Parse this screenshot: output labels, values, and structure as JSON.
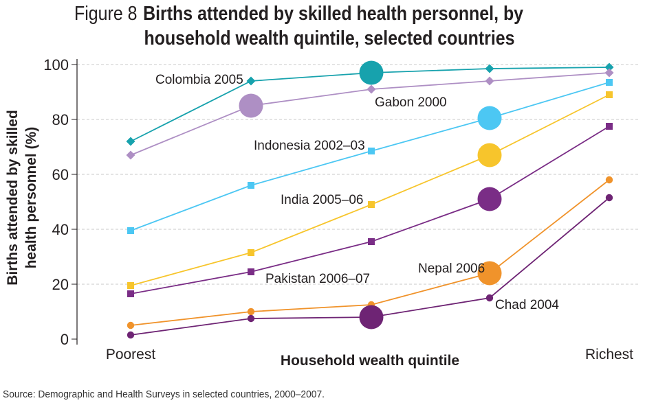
{
  "figure_label": "Figure 8",
  "title_line1": "Births attended by skilled health personnel, by",
  "title_line2": "household wealth quintile, selected countries",
  "source": "Source: Demographic and Health Surveys in selected countries, 2000–2007.",
  "colors": {
    "colombia": "#17a2ad",
    "gabon": "#ae8fc4",
    "indonesia": "#4cc7f3",
    "india": "#f7c52c",
    "pakistan": "#7a2d86",
    "nepal": "#f0932b",
    "chad": "#6e2474",
    "grid": "#c8c8c8",
    "axis": "#231f20"
  },
  "chart_data": {
    "type": "line",
    "xlabel": "Household wealth quintile",
    "ylabel": "Births attended by skilled health personnel (%)",
    "ylim": [
      0,
      100
    ],
    "yticks": [
      0,
      20,
      40,
      60,
      80,
      100
    ],
    "x_tick_labels": [
      "Poorest",
      "",
      "",
      "",
      "Richest"
    ],
    "grid": "horizontal dashed",
    "series": [
      {
        "name": "Colombia 2005",
        "key": "colombia",
        "marker": "diamond",
        "values": [
          72,
          94,
          97,
          98.5,
          99
        ],
        "big_dot_index": 2
      },
      {
        "name": "Gabon 2000",
        "key": "gabon",
        "marker": "diamond",
        "values": [
          67,
          85,
          91,
          94,
          97
        ],
        "big_dot_index": 1
      },
      {
        "name": "Indonesia 2002–03",
        "key": "indonesia",
        "marker": "square",
        "values": [
          39.5,
          56,
          68.5,
          80.5,
          93.5
        ],
        "big_dot_index": 3
      },
      {
        "name": "India 2005–06",
        "key": "india",
        "marker": "square",
        "values": [
          19.5,
          31.5,
          49,
          67,
          89
        ],
        "big_dot_index": 3
      },
      {
        "name": "Pakistan 2006–07",
        "key": "pakistan",
        "marker": "square",
        "values": [
          16.5,
          24.5,
          35.5,
          51,
          77.5
        ],
        "big_dot_index": 3
      },
      {
        "name": "Nepal 2006",
        "key": "nepal",
        "marker": "circle",
        "values": [
          5,
          10,
          12.5,
          24,
          58
        ],
        "big_dot_index": 3
      },
      {
        "name": "Chad 2004",
        "key": "chad",
        "marker": "circle",
        "values": [
          1.5,
          7.5,
          8,
          15,
          51.5
        ],
        "big_dot_index": 2
      }
    ],
    "annotations": [
      "Colombia 2005",
      "Gabon 2000",
      "Indonesia 2002–03",
      "India 2005–06",
      "Pakistan 2006–07",
      "Nepal 2006",
      "Chad 2004"
    ]
  }
}
